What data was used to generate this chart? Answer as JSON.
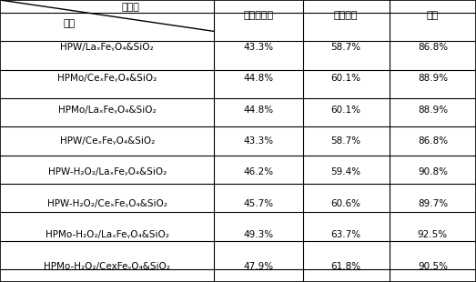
{
  "header_diagonal_top": "脱硫率",
  "header_diagonal_bottom": "样品",
  "col_headers": [
    "二苯并噌咐",
    "苯并噌咐",
    "噌咐"
  ],
  "rows": [
    {
      "label": "HPW/LaₓFeᵧO₄&SiO₂",
      "vals": [
        "43.3%",
        "58.7%",
        "86.8%"
      ]
    },
    {
      "label": "HPMo/CeₓFeᵧO₄&SiO₂",
      "vals": [
        "44.8%",
        "60.1%",
        "88.9%"
      ]
    },
    {
      "label": "HPMo/LaₓFeᵧO₄&SiO₂",
      "vals": [
        "44.8%",
        "60.1%",
        "88.9%"
      ]
    },
    {
      "label": "HPW/CeₓFeᵧO₄&SiO₂",
      "vals": [
        "43.3%",
        "58.7%",
        "86.8%"
      ]
    },
    {
      "label": "HPW-H₂O₂/LaₓFeᵧO₄&SiO₂",
      "vals": [
        "46.2%",
        "59.4%",
        "90.8%"
      ]
    },
    {
      "label": "HPW-H₂O₂/CeₓFeᵧO₄&SiO₂",
      "vals": [
        "45.7%",
        "60.6%",
        "89.7%"
      ]
    },
    {
      "label": "HPMo-H₂O₂/LaₓFeᵧO₄&SiO₂",
      "vals": [
        "49.3%",
        "63.7%",
        "92.5%"
      ]
    },
    {
      "label": "HPMo-H₂O₂/CexFeᵧO₄&SiO₂",
      "vals": [
        "47.9%",
        "61.8%",
        "90.5%"
      ]
    }
  ],
  "bg_color": "#ffffff",
  "border_color": "#000000",
  "text_color": "#000000",
  "font_size": 7.5,
  "header_font_size": 8.0
}
